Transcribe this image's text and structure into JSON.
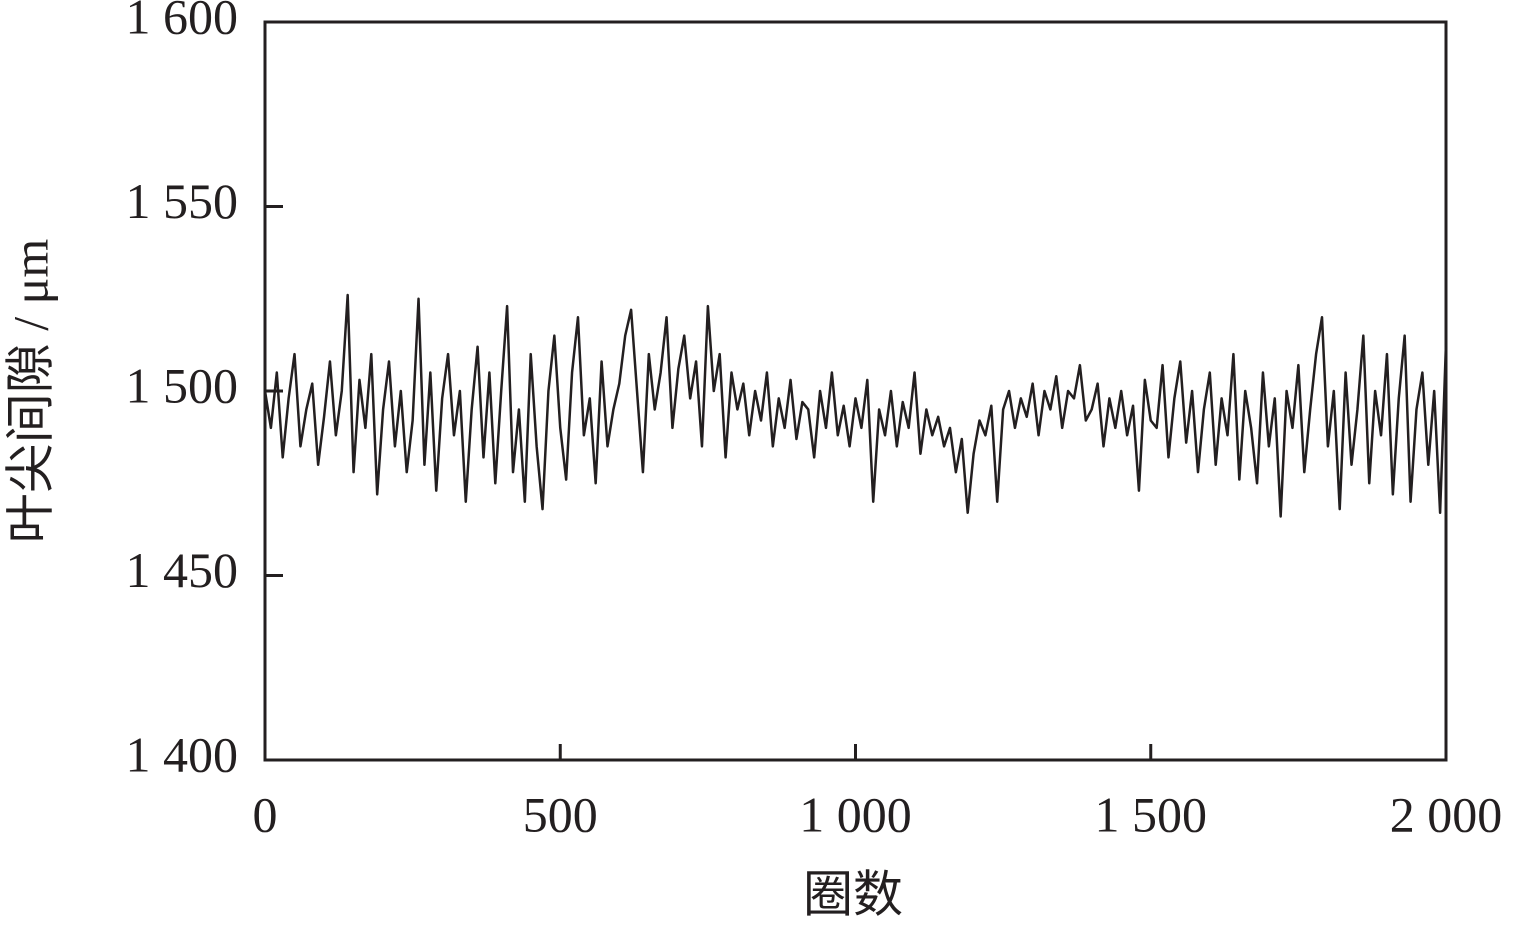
{
  "chart_data": {
    "type": "line",
    "x_label": "圈数",
    "y_label": "叶尖间隙 / μm",
    "xlim": [
      0,
      2000
    ],
    "ylim": [
      1400,
      1600
    ],
    "xticks": [
      0,
      500,
      {
        "value": 1000,
        "label": "1 000"
      },
      {
        "value": 1500,
        "label": "1 500"
      },
      {
        "value": 2000,
        "label": "2 000"
      }
    ],
    "yticks": [
      {
        "value": 1400,
        "label": "1 400"
      },
      {
        "value": 1450,
        "label": "1 450"
      },
      {
        "value": 1500,
        "label": "1 500"
      },
      {
        "value": 1550,
        "label": "1 550"
      },
      {
        "value": 1600,
        "label": "1 600"
      }
    ],
    "grid": false,
    "series": [
      {
        "color": "#231f20",
        "x": [
          0,
          10,
          20,
          30,
          40,
          50,
          60,
          70,
          80,
          90,
          100,
          110,
          120,
          130,
          140,
          150,
          160,
          170,
          180,
          190,
          200,
          210,
          220,
          230,
          240,
          250,
          260,
          270,
          280,
          290,
          300,
          310,
          320,
          330,
          340,
          350,
          360,
          370,
          380,
          390,
          400,
          410,
          420,
          430,
          440,
          450,
          460,
          470,
          480,
          490,
          500,
          510,
          520,
          530,
          540,
          550,
          560,
          570,
          580,
          590,
          600,
          610,
          620,
          630,
          640,
          650,
          660,
          670,
          680,
          690,
          700,
          710,
          720,
          730,
          740,
          750,
          760,
          770,
          780,
          790,
          800,
          810,
          820,
          830,
          840,
          850,
          860,
          870,
          880,
          890,
          900,
          910,
          920,
          930,
          940,
          950,
          960,
          970,
          980,
          990,
          1000,
          1010,
          1020,
          1030,
          1040,
          1050,
          1060,
          1070,
          1080,
          1090,
          1100,
          1110,
          1120,
          1130,
          1140,
          1150,
          1160,
          1170,
          1180,
          1190,
          1200,
          1210,
          1220,
          1230,
          1240,
          1250,
          1260,
          1270,
          1280,
          1290,
          1300,
          1310,
          1320,
          1330,
          1340,
          1350,
          1360,
          1370,
          1380,
          1390,
          1400,
          1410,
          1420,
          1430,
          1440,
          1450,
          1460,
          1470,
          1480,
          1490,
          1500,
          1510,
          1520,
          1530,
          1540,
          1550,
          1560,
          1570,
          1580,
          1590,
          1600,
          1610,
          1620,
          1630,
          1640,
          1650,
          1660,
          1670,
          1680,
          1690,
          1700,
          1710,
          1720,
          1730,
          1740,
          1750,
          1760,
          1770,
          1780,
          1790,
          1800,
          1810,
          1820,
          1830,
          1840,
          1850,
          1860,
          1870,
          1880,
          1890,
          1900,
          1910,
          1920,
          1930,
          1940,
          1950,
          1960,
          1970,
          1980,
          1990,
          2000
        ],
        "values": [
          1500,
          1490,
          1505,
          1482,
          1498,
          1510,
          1485,
          1495,
          1502,
          1480,
          1493,
          1508,
          1488,
          1500,
          1526,
          1478,
          1503,
          1490,
          1510,
          1472,
          1495,
          1508,
          1485,
          1500,
          1478,
          1492,
          1525,
          1480,
          1505,
          1473,
          1498,
          1510,
          1488,
          1500,
          1470,
          1495,
          1512,
          1482,
          1505,
          1475,
          1500,
          1523,
          1478,
          1495,
          1470,
          1510,
          1485,
          1468,
          1500,
          1515,
          1490,
          1476,
          1505,
          1520,
          1488,
          1498,
          1475,
          1508,
          1485,
          1495,
          1502,
          1515,
          1522,
          1500,
          1478,
          1510,
          1495,
          1505,
          1520,
          1490,
          1506,
          1515,
          1498,
          1508,
          1485,
          1523,
          1500,
          1510,
          1482,
          1505,
          1495,
          1502,
          1488,
          1500,
          1492,
          1505,
          1485,
          1498,
          1490,
          1503,
          1487,
          1497,
          1495,
          1482,
          1500,
          1490,
          1505,
          1488,
          1496,
          1485,
          1498,
          1490,
          1503,
          1470,
          1495,
          1488,
          1500,
          1485,
          1497,
          1490,
          1505,
          1483,
          1495,
          1488,
          1493,
          1485,
          1490,
          1478,
          1487,
          1467,
          1483,
          1492,
          1488,
          1496,
          1470,
          1495,
          1500,
          1490,
          1498,
          1493,
          1502,
          1488,
          1500,
          1495,
          1504,
          1490,
          1500,
          1498,
          1507,
          1492,
          1495,
          1502,
          1485,
          1498,
          1490,
          1500,
          1488,
          1496,
          1473,
          1503,
          1492,
          1490,
          1507,
          1482,
          1498,
          1508,
          1486,
          1500,
          1478,
          1495,
          1505,
          1480,
          1498,
          1488,
          1510,
          1476,
          1500,
          1490,
          1475,
          1505,
          1485,
          1498,
          1466,
          1500,
          1490,
          1507,
          1478,
          1495,
          1510,
          1520,
          1485,
          1500,
          1468,
          1505,
          1480,
          1495,
          1515,
          1475,
          1500,
          1488,
          1510,
          1472,
          1498,
          1515,
          1470,
          1495,
          1505,
          1480,
          1500,
          1467,
          1513
        ]
      }
    ]
  }
}
